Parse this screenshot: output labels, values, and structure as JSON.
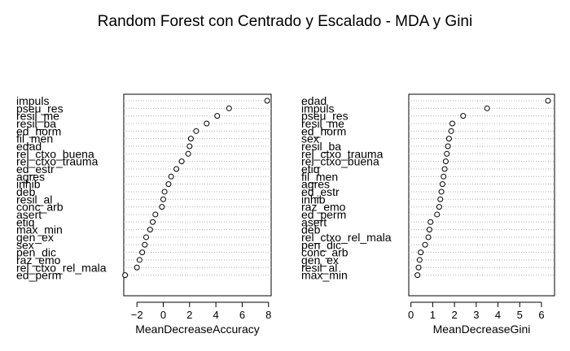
{
  "title": "Random Forest con Centrado y Escalado - MDA y Gini",
  "chart_data": [
    {
      "type": "scatter",
      "panel": "left",
      "xlabel": "MeanDecreaseAccuracy",
      "ylabel": "",
      "xlim": [
        -3,
        8.2
      ],
      "xticks": [
        -2,
        0,
        2,
        4,
        6,
        8
      ],
      "grid": "dotted horizontal lines",
      "marker": "open circle",
      "categories": [
        "impuls",
        "pseu_res",
        "resil_me",
        "resil_ba",
        "ed_horm",
        "fil_men",
        "edad",
        "rel_ctxo_buena",
        "rel_ctxo_trauma",
        "ed_estr",
        "agres",
        "inhib",
        "deb",
        "resil_al",
        "conc_arb",
        "asert",
        "etiq",
        "max_min",
        "gen_ex",
        "sex",
        "pen_dic",
        "raz_emo",
        "rel_ctxo_rel_mala",
        "ed_perm"
      ],
      "values": [
        7.9,
        5.0,
        4.1,
        3.3,
        2.5,
        2.1,
        2.0,
        1.9,
        1.4,
        1.0,
        0.6,
        0.4,
        0.1,
        0.0,
        -0.1,
        -0.6,
        -0.8,
        -1.0,
        -1.3,
        -1.4,
        -1.6,
        -1.8,
        -2.0,
        -2.9
      ]
    },
    {
      "type": "scatter",
      "panel": "right",
      "xlabel": "MeanDecreaseGini",
      "ylabel": "",
      "xlim": [
        -0.1,
        6.6
      ],
      "xticks": [
        0,
        1,
        2,
        3,
        4,
        5,
        6
      ],
      "grid": "dotted horizontal lines",
      "marker": "open circle",
      "categories": [
        "edad",
        "impuls",
        "pseu_res",
        "resil_me",
        "ed_horm",
        "sex",
        "resil_ba",
        "rel_ctxo_trauma",
        "rel_ctxo_buena",
        "etiq",
        "fil_men",
        "agres",
        "ed_estr",
        "inhib",
        "raz_emo",
        "ed_perm",
        "asert",
        "deb",
        "rel_ctxo_rel_mala",
        "pen_dic",
        "conc_arb",
        "gen_ex",
        "resil_al",
        "max_min"
      ],
      "values": [
        6.3,
        3.5,
        2.4,
        1.9,
        1.85,
        1.75,
        1.7,
        1.65,
        1.6,
        1.55,
        1.5,
        1.45,
        1.4,
        1.35,
        1.3,
        1.2,
        0.9,
        0.85,
        0.8,
        0.65,
        0.45,
        0.4,
        0.35,
        0.3
      ]
    }
  ]
}
